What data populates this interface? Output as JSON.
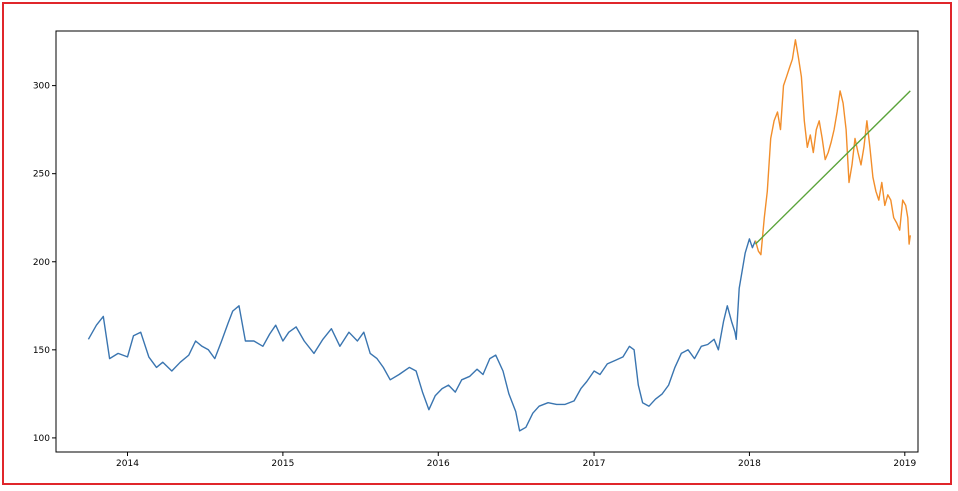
{
  "frame_color": "#e0262b",
  "chart_data": {
    "type": "line",
    "title": "",
    "xlabel": "",
    "ylabel": "",
    "x_axis_type": "date",
    "xlim": [
      "2013-07-17",
      "2019-02-01"
    ],
    "ylim": [
      92,
      331
    ],
    "grid": false,
    "x_ticks": [
      "2014",
      "2015",
      "2016",
      "2017",
      "2018",
      "2019"
    ],
    "y_ticks": [
      "100",
      "150",
      "200",
      "250",
      "300"
    ],
    "series": [
      {
        "color": "#3a75b0",
        "points": [
          [
            "2013-10-01",
            156
          ],
          [
            "2013-10-20",
            164
          ],
          [
            "2013-11-05",
            169
          ],
          [
            "2013-11-20",
            145
          ],
          [
            "2013-12-10",
            148
          ],
          [
            "2014-01-01",
            146
          ],
          [
            "2014-01-15",
            158
          ],
          [
            "2014-02-01",
            160
          ],
          [
            "2014-02-20",
            146
          ],
          [
            "2014-03-10",
            140
          ],
          [
            "2014-03-25",
            143
          ],
          [
            "2014-04-15",
            138
          ],
          [
            "2014-05-05",
            143
          ],
          [
            "2014-05-25",
            147
          ],
          [
            "2014-06-10",
            155
          ],
          [
            "2014-06-25",
            152
          ],
          [
            "2014-07-10",
            150
          ],
          [
            "2014-07-25",
            145
          ],
          [
            "2014-08-10",
            155
          ],
          [
            "2014-08-25",
            165
          ],
          [
            "2014-09-05",
            172
          ],
          [
            "2014-09-20",
            175
          ],
          [
            "2014-10-05",
            155
          ],
          [
            "2014-10-25",
            155
          ],
          [
            "2014-11-15",
            152
          ],
          [
            "2014-12-01",
            159
          ],
          [
            "2014-12-15",
            164
          ],
          [
            "2015-01-01",
            155
          ],
          [
            "2015-01-15",
            160
          ],
          [
            "2015-02-01",
            163
          ],
          [
            "2015-02-20",
            155
          ],
          [
            "2015-03-15",
            148
          ],
          [
            "2015-04-05",
            156
          ],
          [
            "2015-04-25",
            162
          ],
          [
            "2015-05-15",
            152
          ],
          [
            "2015-06-05",
            160
          ],
          [
            "2015-06-25",
            155
          ],
          [
            "2015-07-10",
            160
          ],
          [
            "2015-07-25",
            148
          ],
          [
            "2015-08-10",
            145
          ],
          [
            "2015-08-25",
            140
          ],
          [
            "2015-09-10",
            133
          ],
          [
            "2015-10-01",
            136
          ],
          [
            "2015-10-25",
            140
          ],
          [
            "2015-11-10",
            138
          ],
          [
            "2015-11-25",
            126
          ],
          [
            "2015-12-10",
            116
          ],
          [
            "2015-12-25",
            124
          ],
          [
            "2016-01-10",
            128
          ],
          [
            "2016-01-25",
            130
          ],
          [
            "2016-02-10",
            126
          ],
          [
            "2016-02-25",
            133
          ],
          [
            "2016-03-15",
            135
          ],
          [
            "2016-04-01",
            139
          ],
          [
            "2016-04-15",
            136
          ],
          [
            "2016-05-01",
            145
          ],
          [
            "2016-05-15",
            147
          ],
          [
            "2016-06-01",
            138
          ],
          [
            "2016-06-15",
            125
          ],
          [
            "2016-07-01",
            115
          ],
          [
            "2016-07-10",
            104
          ],
          [
            "2016-07-25",
            106
          ],
          [
            "2016-08-10",
            114
          ],
          [
            "2016-08-25",
            118
          ],
          [
            "2016-09-15",
            120
          ],
          [
            "2016-10-05",
            119
          ],
          [
            "2016-10-25",
            119
          ],
          [
            "2016-11-15",
            121
          ],
          [
            "2016-12-01",
            128
          ],
          [
            "2016-12-15",
            132
          ],
          [
            "2017-01-01",
            138
          ],
          [
            "2017-01-15",
            136
          ],
          [
            "2017-02-01",
            142
          ],
          [
            "2017-02-20",
            144
          ],
          [
            "2017-03-10",
            146
          ],
          [
            "2017-03-25",
            152
          ],
          [
            "2017-04-05",
            150
          ],
          [
            "2017-04-15",
            130
          ],
          [
            "2017-04-25",
            120
          ],
          [
            "2017-05-10",
            118
          ],
          [
            "2017-05-25",
            122
          ],
          [
            "2017-06-10",
            125
          ],
          [
            "2017-06-25",
            130
          ],
          [
            "2017-07-10",
            140
          ],
          [
            "2017-07-25",
            148
          ],
          [
            "2017-08-10",
            150
          ],
          [
            "2017-08-25",
            145
          ],
          [
            "2017-09-10",
            152
          ],
          [
            "2017-09-25",
            153
          ],
          [
            "2017-10-10",
            156
          ],
          [
            "2017-10-20",
            150
          ],
          [
            "2017-11-01",
            166
          ],
          [
            "2017-11-10",
            175
          ],
          [
            "2017-11-20",
            166
          ],
          [
            "2017-11-28",
            160
          ],
          [
            "2017-12-01",
            156
          ],
          [
            "2017-12-08",
            185
          ],
          [
            "2017-12-15",
            195
          ],
          [
            "2017-12-22",
            205
          ],
          [
            "2018-01-01",
            213
          ],
          [
            "2018-01-08",
            208
          ],
          [
            "2018-01-15",
            212
          ]
        ]
      },
      {
        "color": "#f28e2b",
        "points": [
          [
            "2018-01-15",
            212
          ],
          [
            "2018-01-22",
            206
          ],
          [
            "2018-01-28",
            204
          ],
          [
            "2018-02-05",
            225
          ],
          [
            "2018-02-12",
            240
          ],
          [
            "2018-02-20",
            270
          ],
          [
            "2018-02-28",
            280
          ],
          [
            "2018-03-08",
            285
          ],
          [
            "2018-03-15",
            275
          ],
          [
            "2018-03-22",
            300
          ],
          [
            "2018-03-29",
            305
          ],
          [
            "2018-04-05",
            310
          ],
          [
            "2018-04-12",
            315
          ],
          [
            "2018-04-19",
            326
          ],
          [
            "2018-04-26",
            316
          ],
          [
            "2018-05-03",
            305
          ],
          [
            "2018-05-10",
            280
          ],
          [
            "2018-05-17",
            265
          ],
          [
            "2018-05-24",
            272
          ],
          [
            "2018-05-31",
            262
          ],
          [
            "2018-06-07",
            275
          ],
          [
            "2018-06-14",
            280
          ],
          [
            "2018-06-21",
            270
          ],
          [
            "2018-06-28",
            258
          ],
          [
            "2018-07-05",
            262
          ],
          [
            "2018-07-12",
            268
          ],
          [
            "2018-07-19",
            275
          ],
          [
            "2018-07-26",
            285
          ],
          [
            "2018-08-02",
            297
          ],
          [
            "2018-08-09",
            290
          ],
          [
            "2018-08-16",
            275
          ],
          [
            "2018-08-23",
            245
          ],
          [
            "2018-08-30",
            255
          ],
          [
            "2018-09-06",
            270
          ],
          [
            "2018-09-13",
            262
          ],
          [
            "2018-09-20",
            255
          ],
          [
            "2018-09-27",
            265
          ],
          [
            "2018-10-04",
            280
          ],
          [
            "2018-10-11",
            265
          ],
          [
            "2018-10-18",
            248
          ],
          [
            "2018-10-25",
            240
          ],
          [
            "2018-11-01",
            235
          ],
          [
            "2018-11-08",
            245
          ],
          [
            "2018-11-15",
            232
          ],
          [
            "2018-11-22",
            238
          ],
          [
            "2018-11-29",
            235
          ],
          [
            "2018-12-06",
            225
          ],
          [
            "2018-12-13",
            222
          ],
          [
            "2018-12-20",
            218
          ],
          [
            "2018-12-27",
            235
          ],
          [
            "2019-01-03",
            232
          ],
          [
            "2019-01-08",
            225
          ],
          [
            "2019-01-11",
            210
          ],
          [
            "2019-01-14",
            215
          ]
        ]
      },
      {
        "color": "#5aa33a",
        "points": [
          [
            "2018-01-15",
            210
          ],
          [
            "2019-01-14",
            297
          ]
        ]
      }
    ]
  }
}
